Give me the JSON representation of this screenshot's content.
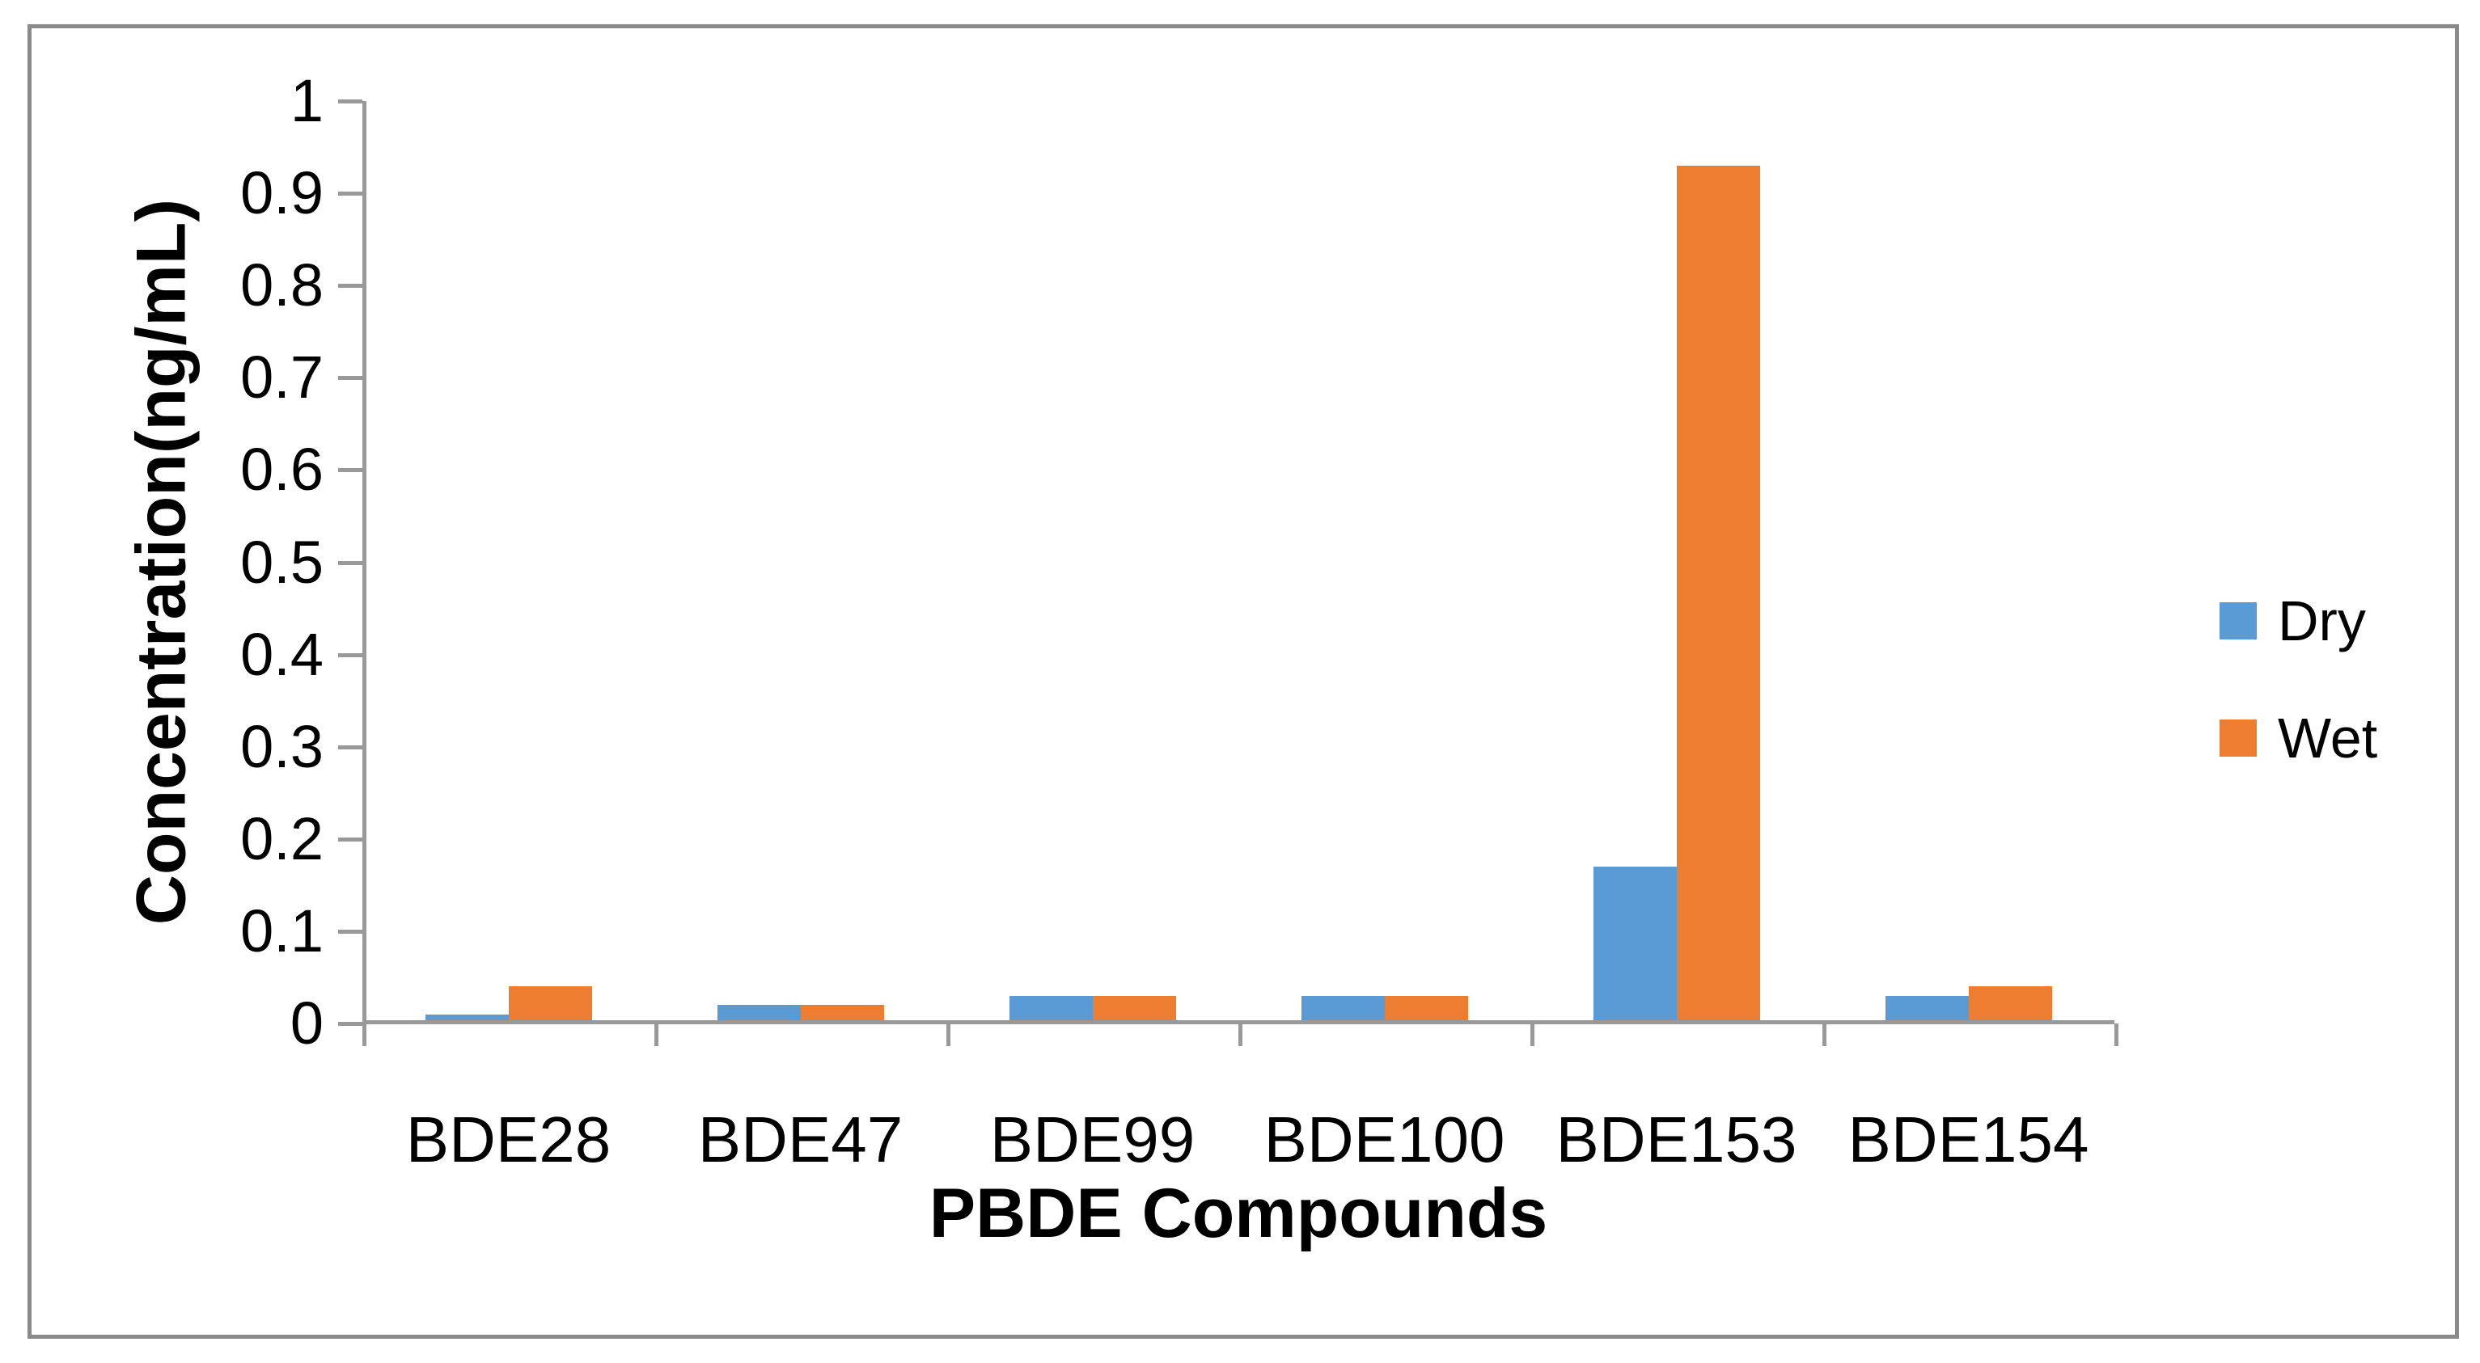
{
  "chart_data": {
    "type": "bar",
    "title": "",
    "categories": [
      "BDE28",
      "BDE47",
      "BDE99",
      "BDE100",
      "BDE153",
      "BDE154"
    ],
    "series": [
      {
        "name": "Dry",
        "color": "#5B9BD5",
        "values": [
          0.01,
          0.02,
          0.03,
          0.03,
          0.17,
          0.03
        ]
      },
      {
        "name": "Wet",
        "color": "#ED7D31",
        "values": [
          0.04,
          0.02,
          0.03,
          0.03,
          0.93,
          0.04
        ]
      }
    ],
    "xlabel": "PBDE Compounds",
    "ylabel": "Concentration(ng/mL)",
    "ylim": [
      0,
      1
    ],
    "ytick_step": 0.1,
    "ytick_labels": [
      "0",
      "0.1",
      "0.2",
      "0.3",
      "0.4",
      "0.5",
      "0.6",
      "0.7",
      "0.8",
      "0.9",
      "1"
    ],
    "grid": false,
    "legend_position": "right"
  },
  "colors": {
    "axis": "#999999",
    "frame_border": "#8A8A8A",
    "text": "#000000",
    "background": "#FFFFFF"
  }
}
